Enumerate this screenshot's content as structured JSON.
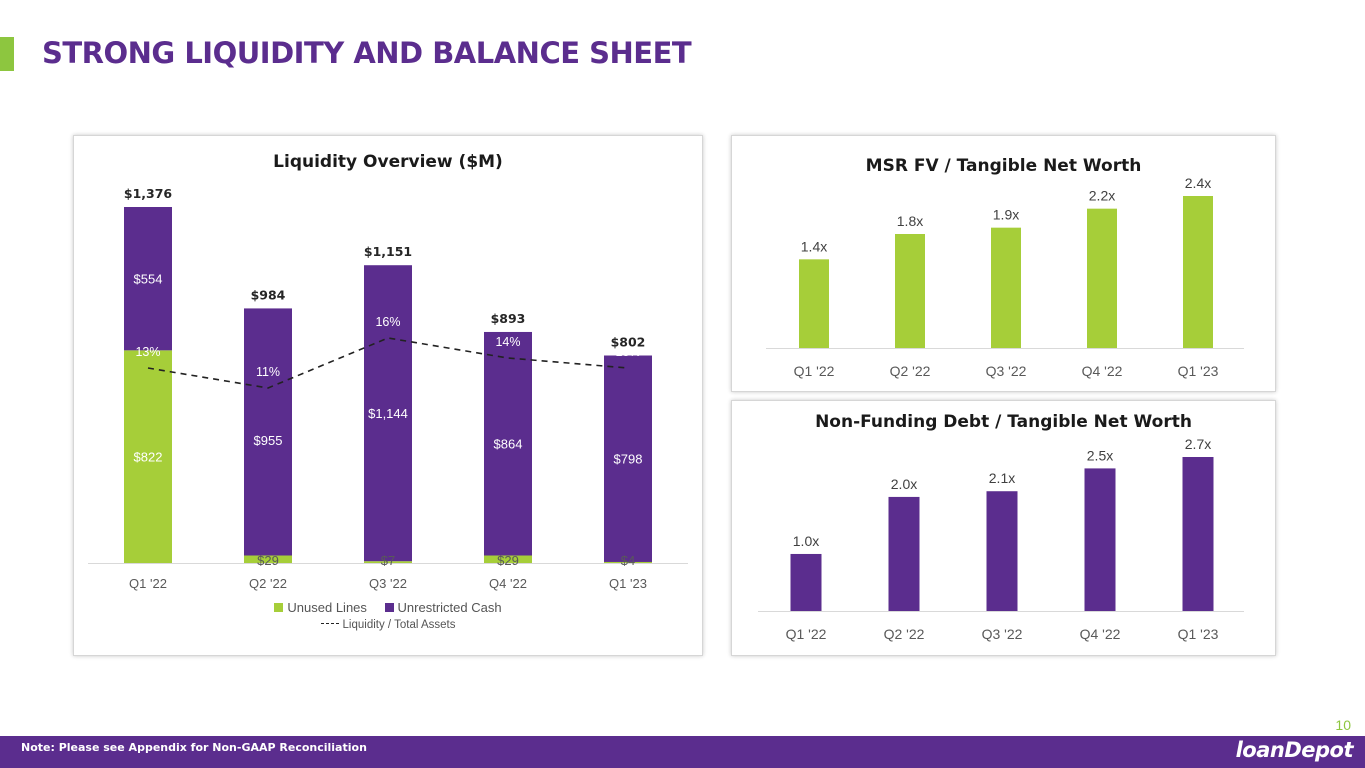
{
  "page": {
    "title": "STRONG LIQUIDITY AND BALANCE SHEET",
    "page_number": "10",
    "footer_note": "Note: Please see Appendix for Non-GAAP Reconciliation",
    "logo_text": "loanDepot",
    "accent_green": "#8dc63f",
    "brand_purple": "#5b2d8e"
  },
  "chart_data": [
    {
      "id": "liquidity",
      "type": "bar",
      "stacked": true,
      "title": "Liquidity Overview ($M)",
      "categories": [
        "Q1 '22",
        "Q2 '22",
        "Q3 '22",
        "Q4 '22",
        "Q1 '23"
      ],
      "series": [
        {
          "name": "Unused Lines",
          "color": "#a6ce39",
          "values": [
            822,
            29,
            7,
            29,
            4
          ],
          "labels": [
            "$822",
            "$29",
            "$7",
            "$29",
            "$4"
          ]
        },
        {
          "name": "Unrestricted Cash",
          "color": "#5b2d8e",
          "values": [
            554,
            955,
            1144,
            864,
            798
          ],
          "labels": [
            "$554",
            "$955",
            "$1,144",
            "$864",
            "$798"
          ]
        }
      ],
      "totals": [
        1376,
        984,
        1151,
        893,
        802
      ],
      "total_labels": [
        "$1,376",
        "$984",
        "$1,151",
        "$893",
        "$802"
      ],
      "line_series": {
        "name": "Liquidity / Total Assets",
        "style": "dashed",
        "values": [
          13,
          11,
          16,
          14,
          13
        ],
        "labels": [
          "13%",
          "11%",
          "16%",
          "14%",
          "13%"
        ]
      },
      "ylim": [
        0,
        1376
      ],
      "grid": false,
      "legend_position": "bottom"
    },
    {
      "id": "msr",
      "type": "bar",
      "title": "MSR FV / Tangible Net Worth",
      "categories": [
        "Q1 '22",
        "Q2 '22",
        "Q3 '22",
        "Q4 '22",
        "Q1 '23"
      ],
      "values": [
        1.4,
        1.8,
        1.9,
        2.2,
        2.4
      ],
      "labels": [
        "1.4x",
        "1.8x",
        "1.9x",
        "2.2x",
        "2.4x"
      ],
      "color": "#a6ce39",
      "ylim": [
        0,
        2.4
      ],
      "grid": false
    },
    {
      "id": "nfd",
      "type": "bar",
      "title": "Non-Funding Debt / Tangible Net Worth",
      "categories": [
        "Q1 '22",
        "Q2 '22",
        "Q3 '22",
        "Q4 '22",
        "Q1 '23"
      ],
      "values": [
        1.0,
        2.0,
        2.1,
        2.5,
        2.7
      ],
      "labels": [
        "1.0x",
        "2.0x",
        "2.1x",
        "2.5x",
        "2.7x"
      ],
      "color": "#5b2d8e",
      "ylim": [
        0,
        2.7
      ],
      "grid": false
    }
  ]
}
